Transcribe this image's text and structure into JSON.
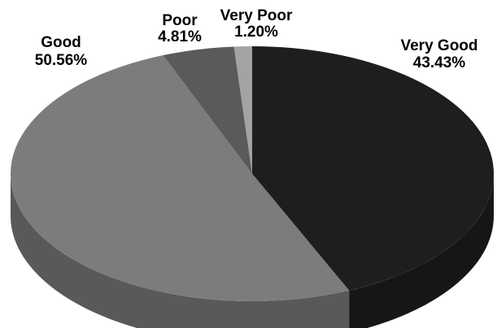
{
  "chart_data": {
    "type": "pie",
    "title": "",
    "categories": [
      "Very Good",
      "Good",
      "Poor",
      "Very Poor"
    ],
    "values": [
      43.43,
      50.56,
      4.81,
      1.2
    ],
    "value_labels": [
      "43.43%",
      "50.56%",
      "4.81%",
      "1.20%"
    ],
    "unit": "%",
    "style": "3d",
    "legend": "none",
    "colors": [
      "#1e1e1e",
      "#7c7c7c",
      "#5a5a5a",
      "#a3a3a3"
    ]
  }
}
